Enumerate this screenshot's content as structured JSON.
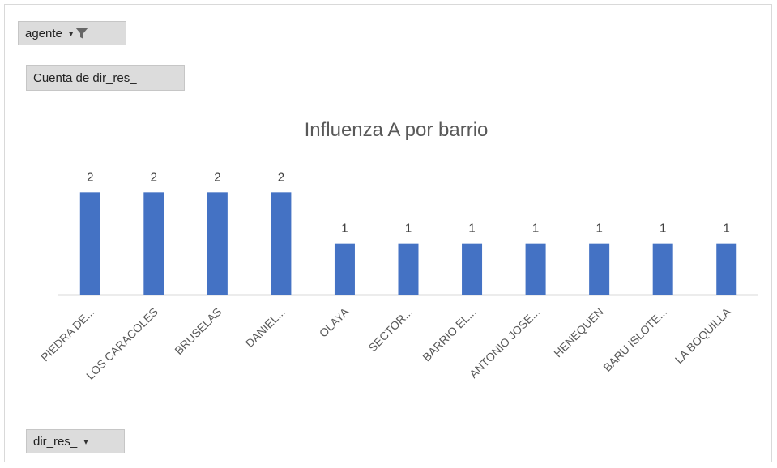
{
  "pivot": {
    "filter_label": "agente",
    "values_label": "Cuenta de dir_res_",
    "axis_label": "dir_res_"
  },
  "colors": {
    "bar": "#4472c4",
    "axis": "#d9d9d9",
    "button_bg": "#dcdcdc"
  },
  "chart_data": {
    "type": "bar",
    "title": "Influenza A por barrio",
    "categories": [
      "PIEDRA DE...",
      "LOS CARACOLES",
      "BRUSELAS",
      "DANIEL...",
      "OLAYA",
      "SECTOR...",
      "BARRIO EL...",
      "ANTONIO JOSE...",
      "HENEQUEN",
      "BARU ISLOTE...",
      "LA BOQUILLA"
    ],
    "values": [
      2,
      2,
      2,
      2,
      1,
      1,
      1,
      1,
      1,
      1,
      1
    ],
    "data_labels": [
      "2",
      "2",
      "2",
      "2",
      "1",
      "1",
      "1",
      "1",
      "1",
      "1",
      "1"
    ],
    "ylim": [
      0,
      2.4
    ],
    "grid": false,
    "legend": "none"
  }
}
